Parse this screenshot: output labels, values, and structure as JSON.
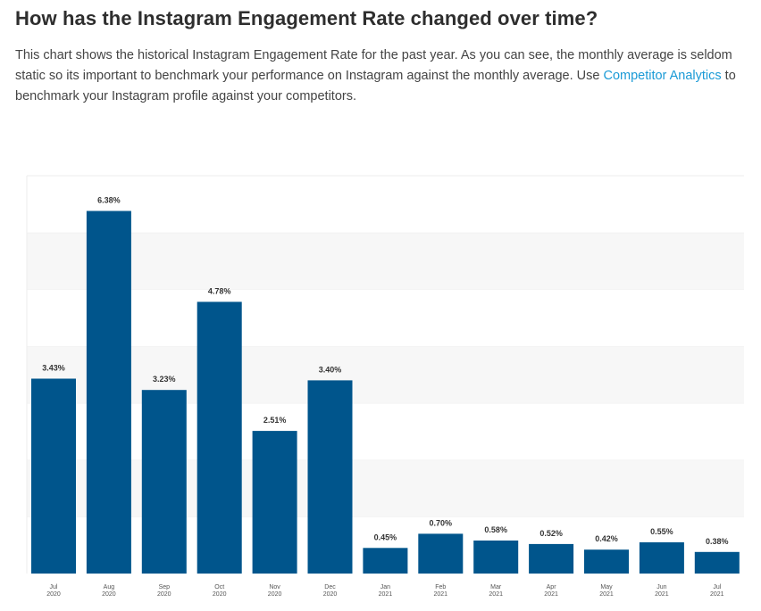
{
  "header": {
    "title": "How has the Instagram Engagement Rate changed over time?"
  },
  "intro": {
    "text_before": "This chart shows the historical Instagram Engagement Rate for the past year. As you can see, the monthly average is seldom static so its important to benchmark your performance on Instagram against the monthly average. Use ",
    "link_text": "Competitor Analytics",
    "text_after": " to benchmark your Instagram profile against your competitors."
  },
  "colors": {
    "bar": "#00558c",
    "band_light": "#f7f7f7",
    "band_white": "#ffffff",
    "link": "#1a9ad6"
  },
  "chart_data": {
    "type": "bar",
    "title": "",
    "xlabel": "",
    "ylabel": "",
    "ylim": [
      0,
      7
    ],
    "grid": true,
    "legend": "none",
    "categories": [
      {
        "month": "Jul",
        "year": "2020"
      },
      {
        "month": "Aug",
        "year": "2020"
      },
      {
        "month": "Sep",
        "year": "2020"
      },
      {
        "month": "Oct",
        "year": "2020"
      },
      {
        "month": "Nov",
        "year": "2020"
      },
      {
        "month": "Dec",
        "year": "2020"
      },
      {
        "month": "Jan",
        "year": "2021"
      },
      {
        "month": "Feb",
        "year": "2021"
      },
      {
        "month": "Mar",
        "year": "2021"
      },
      {
        "month": "Apr",
        "year": "2021"
      },
      {
        "month": "May",
        "year": "2021"
      },
      {
        "month": "Jun",
        "year": "2021"
      },
      {
        "month": "Jul",
        "year": "2021"
      }
    ],
    "values": [
      3.43,
      6.38,
      3.23,
      4.78,
      2.51,
      3.4,
      0.45,
      0.7,
      0.58,
      0.52,
      0.42,
      0.55,
      0.38
    ],
    "value_labels": [
      "3.43%",
      "6.38%",
      "3.23%",
      "4.78%",
      "2.51%",
      "3.40%",
      "0.45%",
      "0.70%",
      "0.58%",
      "0.52%",
      "0.42%",
      "0.55%",
      "0.38%"
    ]
  }
}
